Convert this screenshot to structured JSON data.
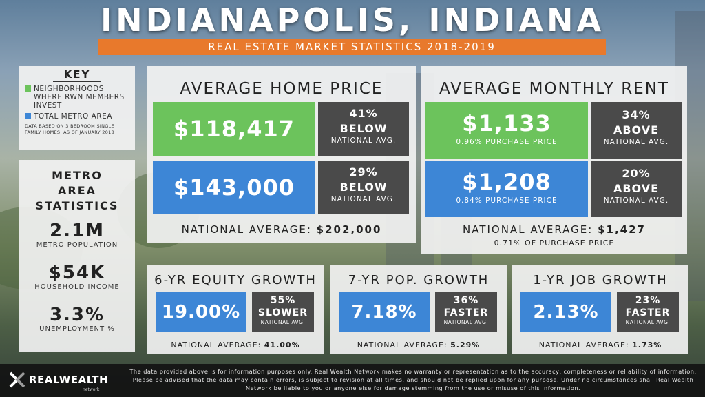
{
  "header": {
    "title": "INDIANAPOLIS, INDIANA",
    "subtitle": "REAL ESTATE MARKET STATISTICS 2018-2019"
  },
  "colors": {
    "orange_accent": "#e8792c",
    "green": "#6cc35c",
    "blue": "#3d86d6",
    "dark_gray": "#4a4a4a"
  },
  "key": {
    "title": "KEY",
    "items": [
      {
        "label": "NEIGHBORHOODS WHERE RWN MEMBERS INVEST",
        "color": "#6cc35c"
      },
      {
        "label": "TOTAL METRO AREA",
        "color": "#3d86d6"
      }
    ],
    "note": "DATA BASED ON 3 BEDROOM SINGLE FAMILY HOMES, AS OF JANUARY 2018"
  },
  "metro": {
    "title": "METRO AREA STATISTICS",
    "stats": [
      {
        "value": "2.1M",
        "label": "METRO POPULATION"
      },
      {
        "value": "$54K",
        "label": "HOUSEHOLD INCOME"
      },
      {
        "value": "3.3%",
        "label": "UNEMPLOYMENT %"
      }
    ]
  },
  "home_price": {
    "title": "AVERAGE HOME PRICE",
    "rwn_value": "$118,417",
    "rwn_pct": "41%",
    "rwn_dir": "BELOW",
    "rwn_ref": "NATIONAL AVG.",
    "metro_value": "$143,000",
    "metro_pct": "29%",
    "metro_dir": "BELOW",
    "metro_ref": "NATIONAL AVG.",
    "national_label": "NATIONAL AVERAGE:",
    "national_value": "$202,000"
  },
  "rent": {
    "title": "AVERAGE MONTHLY RENT",
    "rwn_value": "$1,133",
    "rwn_sub": "0.96% PURCHASE PRICE",
    "rwn_pct": "34%",
    "rwn_dir": "ABOVE",
    "rwn_ref": "NATIONAL AVG.",
    "metro_value": "$1,208",
    "metro_sub": "0.84% PURCHASE PRICE",
    "metro_pct": "20%",
    "metro_dir": "ABOVE",
    "metro_ref": "NATIONAL AVG.",
    "national_label": "NATIONAL AVERAGE:",
    "national_value": "$1,427",
    "national_sub": "0.71% OF PURCHASE PRICE"
  },
  "growth": [
    {
      "title": "6-YR EQUITY GROWTH",
      "value": "19.00%",
      "pct": "55%",
      "dir": "SLOWER",
      "ref": "NATIONAL AVG.",
      "national_label": "NATIONAL AVERAGE:",
      "national_value": "41.00%"
    },
    {
      "title": "7-YR POP. GROWTH",
      "value": "7.18%",
      "pct": "36%",
      "dir": "FASTER",
      "ref": "NATIONAL AVG.",
      "national_label": "NATIONAL AVERAGE:",
      "national_value": "5.29%"
    },
    {
      "title": "1-YR JOB GROWTH",
      "value": "2.13%",
      "pct": "23%",
      "dir": "FASTER",
      "ref": "NATIONAL AVG.",
      "national_label": "NATIONAL AVERAGE:",
      "national_value": "1.73%"
    }
  ],
  "footer": {
    "logo": "REALWEALTH",
    "logo_sub": "network",
    "disclaimer": "The data provided above is for information purposes only. Real Wealth Network makes no warranty or representation as to the accuracy, completeness or reliability of information. Please be advised that the data may contain errors, is subject to revision at all times, and should not be replied upon for any purpose. Under no circumstances shall Real Wealth Network be liable to you or anyone else for damage stemming from the use or misuse of this information."
  }
}
